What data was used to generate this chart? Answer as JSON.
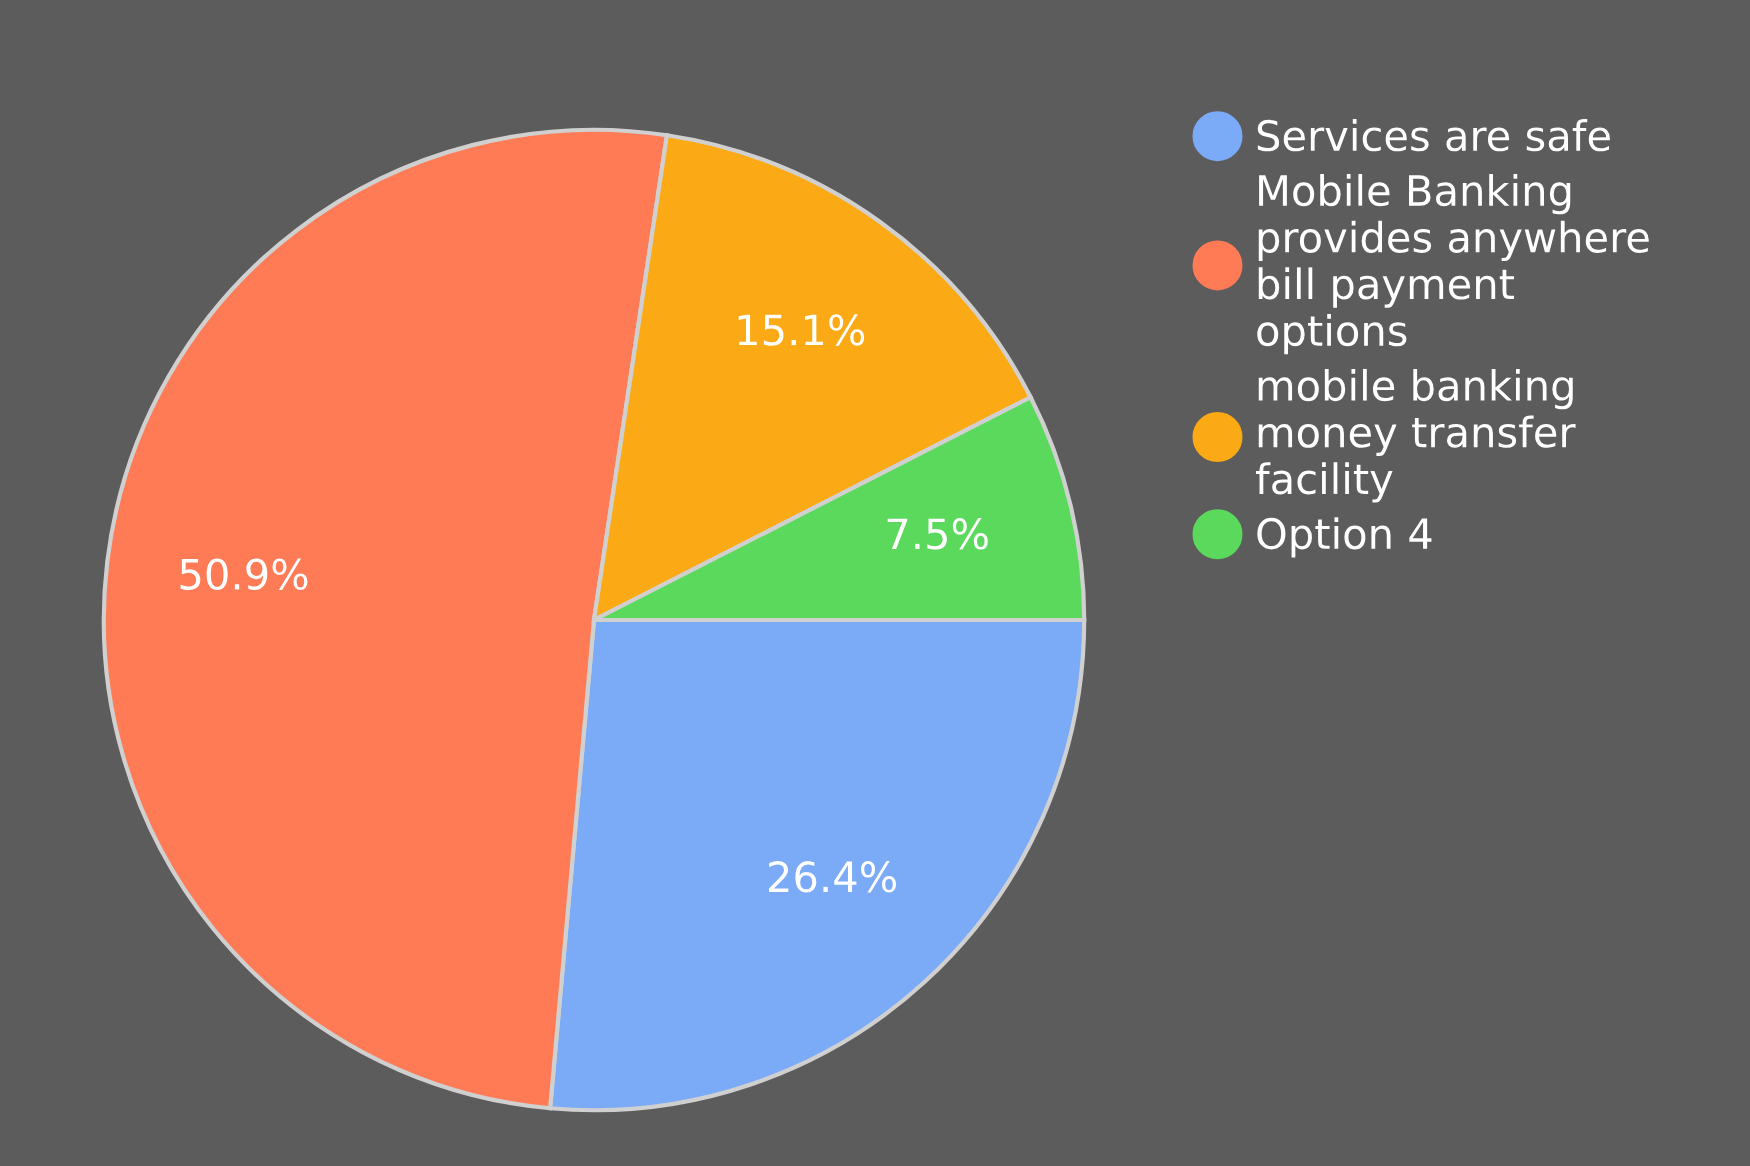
{
  "chart_data": {
    "type": "pie",
    "categories": [
      "Services are safe",
      "Mobile Banking provides anywhere bill payment options",
      "mobile banking money transfer facility",
      "Option 4"
    ],
    "values": [
      26.4,
      50.9,
      15.1,
      7.5
    ],
    "colors": [
      "#7baaf7",
      "#ff7b55",
      "#fbaa15",
      "#5bd95c"
    ],
    "value_labels": [
      "26.4%",
      "50.9%",
      "15.1%",
      "7.5%"
    ],
    "legend": "top right"
  }
}
